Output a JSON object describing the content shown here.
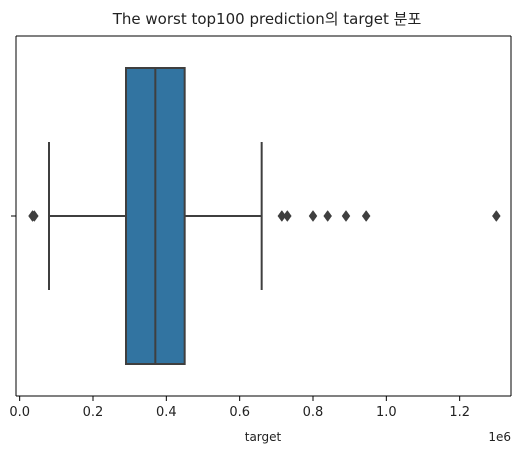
{
  "chart_data": {
    "type": "boxplot",
    "orientation": "horizontal",
    "title": "The worst top100 prediction의 target 분포",
    "xlabel": "target",
    "x_offset_label": "1e6",
    "x_scale_factor": 1000000,
    "xlim": [
      -10000,
      1340000
    ],
    "xticks": [
      0,
      200000,
      400000,
      600000,
      800000,
      1000000,
      1200000
    ],
    "xtick_labels": [
      "0.0",
      "0.2",
      "0.4",
      "0.6",
      "0.8",
      "1.0",
      "1.2"
    ],
    "box": {
      "whisker_low": 80000,
      "q1": 290000,
      "median": 370000,
      "q3": 450000,
      "whisker_high": 660000
    },
    "outliers": [
      35000,
      40000,
      715000,
      730000,
      800000,
      840000,
      890000,
      945000,
      1300000
    ],
    "colors": {
      "box_fill": "#3274a1",
      "line": "#3f3f3f"
    }
  }
}
